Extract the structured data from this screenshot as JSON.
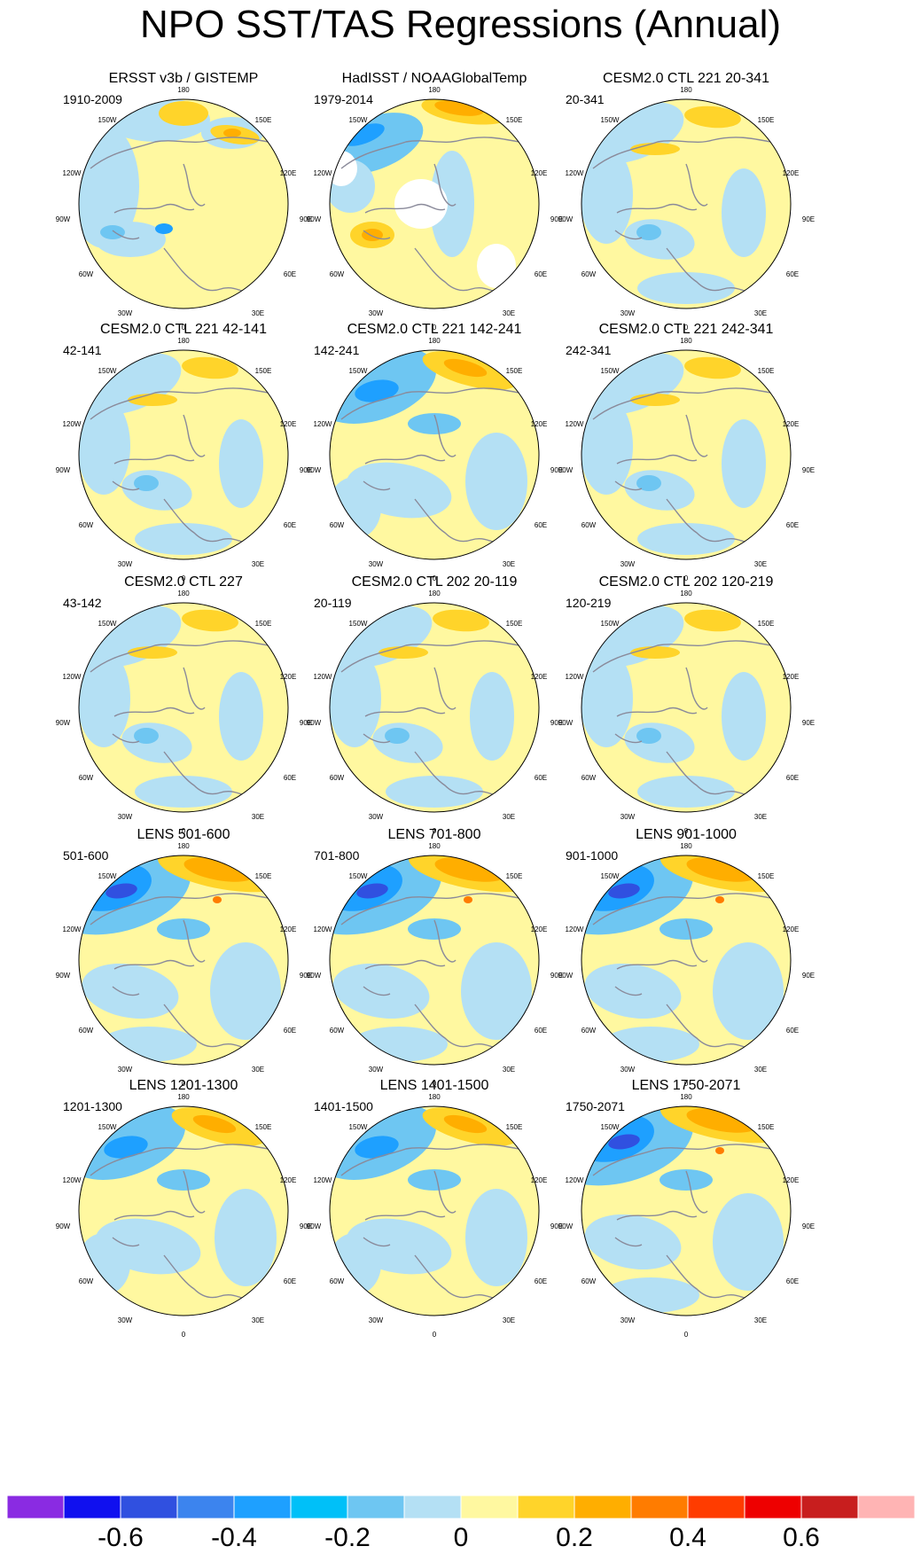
{
  "title": "NPO SST/TAS Regressions (Annual)",
  "lon_labels": [
    "180",
    "150E",
    "120E",
    "90E",
    "60E",
    "30E",
    "0",
    "30W",
    "60W",
    "90W",
    "120W",
    "150W"
  ],
  "panels": [
    {
      "title": "ERSST v3b / GISTEMP",
      "period": "1910-2009",
      "pattern": "obs1"
    },
    {
      "title": "HadISST / NOAAGlobalTemp",
      "period": "1979-2014",
      "pattern": "obs2"
    },
    {
      "title": "CESM2.0 CTL 221 20-341",
      "period": "20-341",
      "pattern": "weak"
    },
    {
      "title": "CESM2.0 CTL 221 42-141",
      "period": "42-141",
      "pattern": "weak"
    },
    {
      "title": "CESM2.0 CTL 221 142-241",
      "period": "142-241",
      "pattern": "medium"
    },
    {
      "title": "CESM2.0 CTL 221 242-341",
      "period": "242-341",
      "pattern": "weak"
    },
    {
      "title": "CESM2.0 CTL 227",
      "period": "43-142",
      "pattern": "weak"
    },
    {
      "title": "CESM2.0 CTL 202 20-119",
      "period": "20-119",
      "pattern": "weak"
    },
    {
      "title": "CESM2.0 CTL 202 120-219",
      "period": "120-219",
      "pattern": "weak"
    },
    {
      "title": "LENS 501-600",
      "period": "501-600",
      "pattern": "strong"
    },
    {
      "title": "LENS 701-800",
      "period": "701-800",
      "pattern": "strong"
    },
    {
      "title": "LENS 901-1000",
      "period": "901-1000",
      "pattern": "strong"
    },
    {
      "title": "LENS 1201-1300",
      "period": "1201-1300",
      "pattern": "medium"
    },
    {
      "title": "LENS 1401-1500",
      "period": "1401-1500",
      "pattern": "medium"
    },
    {
      "title": "LENS 1750-2071",
      "period": "1750-2071",
      "pattern": "strong"
    }
  ],
  "colorbar": {
    "colors": [
      "#8a2be2",
      "#1010ef",
      "#3050e0",
      "#3c84ee",
      "#1ea0ff",
      "#00c0f8",
      "#6ec6f2",
      "#b4e0f4",
      "#fff8a0",
      "#ffd42a",
      "#ffae00",
      "#ff7c00",
      "#ff3c00",
      "#ee0000",
      "#c81e1e",
      "#ffb4b4"
    ],
    "labels": [
      "-0.6",
      "-0.4",
      "-0.2",
      "0",
      "0.2",
      "0.4",
      "0.6"
    ]
  }
}
